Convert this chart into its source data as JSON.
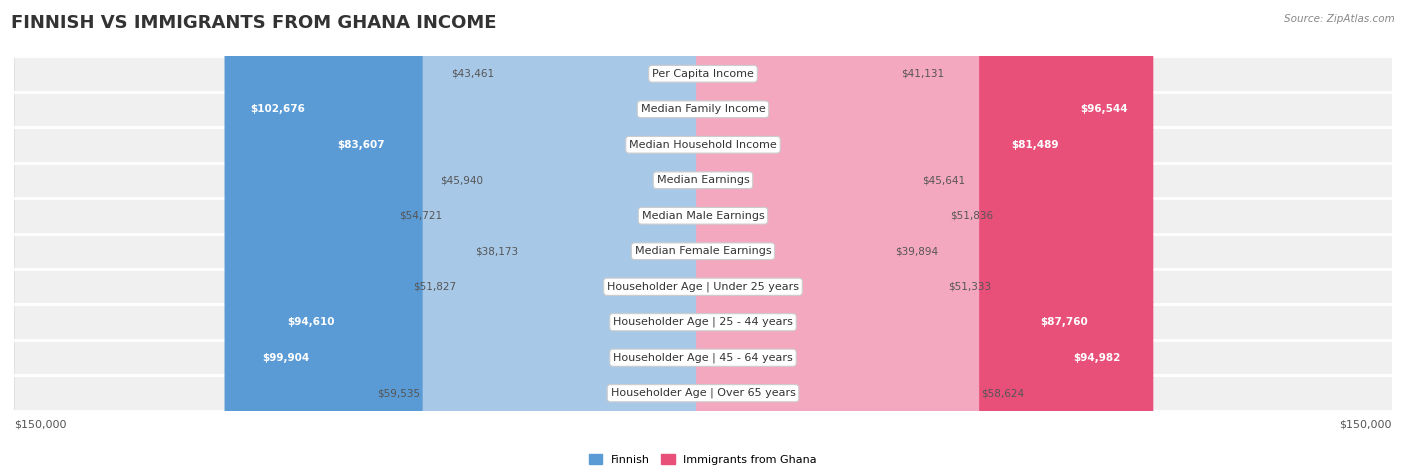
{
  "title": "FINNISH VS IMMIGRANTS FROM GHANA INCOME",
  "source": "Source: ZipAtlas.com",
  "categories": [
    "Per Capita Income",
    "Median Family Income",
    "Median Household Income",
    "Median Earnings",
    "Median Male Earnings",
    "Median Female Earnings",
    "Householder Age | Under 25 years",
    "Householder Age | 25 - 44 years",
    "Householder Age | 45 - 64 years",
    "Householder Age | Over 65 years"
  ],
  "finnish_values": [
    43461,
    102676,
    83607,
    45940,
    54721,
    38173,
    51827,
    94610,
    99904,
    59535
  ],
  "ghana_values": [
    41131,
    96544,
    81489,
    45641,
    51836,
    39894,
    51333,
    87760,
    94982,
    58624
  ],
  "finnish_color_light": "#a8c8e8",
  "finnish_color_dark": "#5b9bd5",
  "ghana_color_light": "#f4a8c0",
  "ghana_color_dark": "#e8507a",
  "row_bg_color": "#f0f0f0",
  "row_border_color": "#d8d8d8",
  "max_value": 150000,
  "xlabel_left": "$150,000",
  "xlabel_right": "$150,000",
  "legend_finnish": "Finnish",
  "legend_ghana": "Immigrants from Ghana",
  "title_fontsize": 13,
  "label_fontsize": 8.0,
  "value_fontsize": 7.5,
  "axis_label_fontsize": 8,
  "inside_threshold": 65000,
  "value_color_outside": "#555555",
  "value_color_inside": "white"
}
